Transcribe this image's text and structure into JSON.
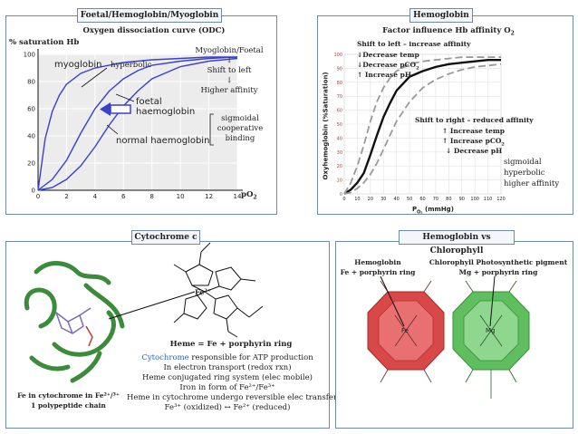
{
  "p1": {
    "tag": "Foetal/Hemoglobin/Myoglobin",
    "title": "Oxygen dissociation curve (ODC)",
    "y_label": "% saturation Hb",
    "x_label": "pO",
    "x_label_sub": "2",
    "curve_myoglobin": "myoglobin",
    "hyperbolic": "hyperbolic",
    "curve_foetal_1": "foetal",
    "curve_foetal_2": "haemoglobin",
    "curve_normal": "normal haemoglobin",
    "note_1": "Myoglobin/Foetal",
    "note_arrow1": "↓",
    "note_2": "Shift to left",
    "note_arrow2": "↓",
    "note_3": "Higher affinity",
    "sig_1": "sigmoidal",
    "sig_2": "cooperative",
    "sig_3": "binding"
  },
  "p2": {
    "tag": "Hemoglobin",
    "title": "Factor influence Hb affinity O",
    "title_sub": "2",
    "left_1": "Shift to left – increase affinity",
    "left_2": "↓Decrease temp",
    "left_3": "↓Decrease pCO",
    "left_3_sub": "2",
    "left_4": "↑ Increase pH",
    "right_1": "Shift to right – reduced affinity",
    "right_2": "↑ Increase temp",
    "right_3": "↑ Increase pCO",
    "right_3_sub": "2",
    "right_4": "↓ Decrease pH",
    "type_1": "sigmoidal",
    "type_2": "hyperbolic",
    "type_3": "higher affinity",
    "y_axis": "Oxyhemoglobin (%Saturation)",
    "x_axis": "P",
    "x_axis_sub": "O₂",
    "x_axis_unit": "(mmHg)"
  },
  "p3": {
    "tag": "Cytochrome c",
    "fe_label": "Fe",
    "fe_sup": "2+",
    "heme": "Heme = Fe + porphyrin ring",
    "line1_a": "Cytochrome",
    "line1_b": " responsible for ATP production",
    "line2": "In electron transport (redox rxn)",
    "line3": "Heme conjugated ring system (elec mobile)",
    "line4": "Iron in form of Fe²⁺/Fe³⁺",
    "line5": "Heme in cytochrome undergo reversible elec transfer",
    "line6": "Fe³⁺ (oxidized) ↔ Fe²⁺ (reduced)",
    "caption1": "Fe in cytochrome in Fe²⁺/³⁺",
    "caption2": "1 polypeptide chain"
  },
  "p4": {
    "tag": "Hemoglobin vs Chlorophyll",
    "hb_1": "Hemoglobin",
    "hb_2": "Fe + porphyrin ring",
    "chl_1": "Chlorophyll Photosynthetic pigment",
    "chl_2": "Mg + porphyrin ring",
    "fe": "Fe",
    "mg": "Mg"
  },
  "chart_data": [
    {
      "type": "line",
      "x_ticks": [
        "0",
        "2",
        "4",
        "6",
        "8",
        "10",
        "12",
        "14"
      ],
      "y_ticks": [
        "0",
        "20",
        "40",
        "60",
        "80",
        "100"
      ],
      "xlim": [
        0,
        14
      ],
      "ylim": [
        0,
        100
      ],
      "series": [
        {
          "name": "myoglobin",
          "x": [
            0,
            0.5,
            1,
            1.5,
            2,
            3,
            4,
            6,
            8,
            10,
            12,
            14
          ],
          "values": [
            0,
            38,
            58,
            70,
            78,
            86,
            90,
            94,
            96,
            97,
            98,
            98
          ]
        },
        {
          "name": "foetal haemoglobin",
          "x": [
            0,
            1,
            2,
            3,
            4,
            5,
            6,
            7,
            8,
            10,
            12,
            14
          ],
          "values": [
            0,
            8,
            22,
            42,
            60,
            73,
            82,
            88,
            92,
            95,
            97,
            98
          ]
        },
        {
          "name": "normal haemoglobin",
          "x": [
            0,
            1,
            2,
            3,
            4,
            5,
            6,
            7,
            8,
            10,
            12,
            14
          ],
          "values": [
            0,
            2,
            8,
            18,
            32,
            48,
            62,
            73,
            82,
            91,
            95,
            97
          ]
        }
      ]
    },
    {
      "type": "line",
      "x_ticks": [
        "0",
        "10",
        "20",
        "30",
        "40",
        "50",
        "60",
        "70",
        "80",
        "90",
        "100",
        "110",
        "120"
      ],
      "y_ticks": [
        "0",
        "10",
        "20",
        "30",
        "40",
        "50",
        "60",
        "70",
        "80",
        "90",
        "100"
      ],
      "xlim": [
        0,
        120
      ],
      "ylim": [
        0,
        100
      ],
      "series": [
        {
          "x": [
            0,
            5,
            10,
            15,
            20,
            25,
            30,
            35,
            40,
            50,
            60,
            70,
            80,
            90,
            100,
            110,
            120
          ],
          "values": [
            0,
            3,
            8,
            15,
            28,
            42,
            55,
            65,
            74,
            84,
            88,
            91,
            93,
            94,
            95,
            96,
            96
          ]
        },
        {
          "x": [
            0,
            5,
            10,
            15,
            20,
            25,
            30,
            35,
            40,
            50,
            60,
            70,
            80,
            90,
            100,
            110,
            120
          ],
          "values": [
            0,
            8,
            20,
            35,
            52,
            66,
            76,
            83,
            88,
            93,
            95,
            96,
            97,
            98,
            98,
            98,
            98
          ]
        },
        {
          "x": [
            0,
            5,
            10,
            15,
            20,
            25,
            30,
            35,
            40,
            50,
            60,
            70,
            80,
            90,
            100,
            110,
            120
          ],
          "values": [
            0,
            1,
            4,
            8,
            14,
            22,
            32,
            42,
            52,
            66,
            76,
            82,
            86,
            89,
            91,
            92,
            93
          ]
        }
      ]
    }
  ]
}
